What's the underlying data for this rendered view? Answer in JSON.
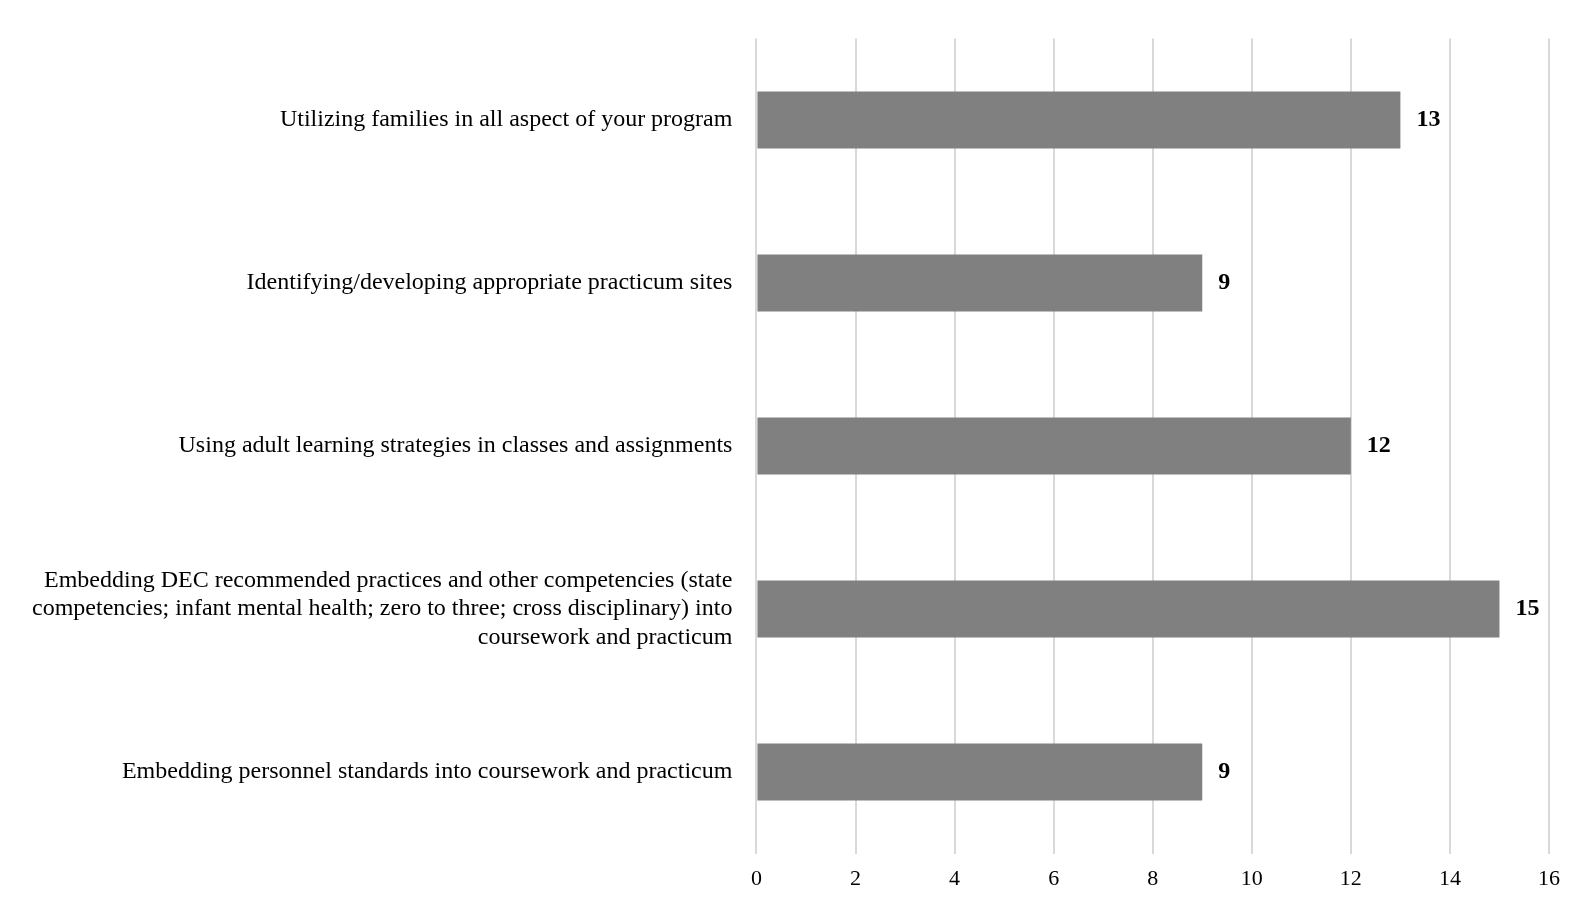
{
  "chart_data": {
    "type": "bar",
    "orientation": "horizontal",
    "categories": [
      "Utilizing families in all aspect of your program",
      "Identifying/developing appropriate practicum sites",
      "Using adult learning strategies in classes and assignments",
      "Embedding DEC recommended practices and other competencies (state competencies; infant mental health; zero to three; cross disciplinary) into coursework and practicum",
      "Embedding personnel standards into coursework and practicum"
    ],
    "values": [
      13,
      9,
      12,
      15,
      9
    ],
    "color": "#808080",
    "xlim": [
      0,
      16
    ],
    "xticks": [
      0,
      2,
      4,
      6,
      8,
      10,
      12,
      14,
      16
    ],
    "grid": "x",
    "legend": false,
    "data_labels": true
  }
}
